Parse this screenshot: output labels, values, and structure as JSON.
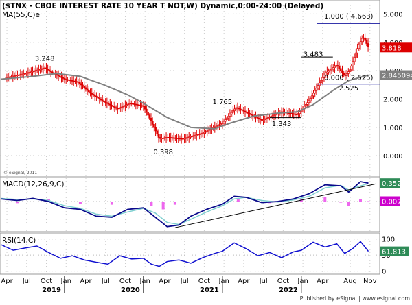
{
  "header": {
    "title": "($TNX - CBOE INTEREST RATE 10 YEAR T NOT,W) Dynamic,0:00-24:00 (Delayed)",
    "ma_label": "MA(55,C)e"
  },
  "watermark": "© eSignal, 2011",
  "footer": "Published by eSignal | www.esignal.com",
  "chart_data": [
    {
      "type": "candlestick",
      "panel": "price",
      "ylim": [
        -0.6,
        5.3
      ],
      "yticks": [
        "0.000",
        "1.000",
        "2.000",
        "3.000",
        "4.000",
        "5.000"
      ],
      "ytick_values": [
        0,
        1,
        2,
        3,
        4,
        5
      ],
      "x_range": [
        2018.2,
        2022.95
      ],
      "x": [
        2018.25,
        2018.5,
        2018.75,
        2018.83,
        2019.0,
        2019.17,
        2019.33,
        2019.5,
        2019.67,
        2019.83,
        2020.0,
        2020.1,
        2020.2,
        2020.3,
        2020.5,
        2020.75,
        2021.0,
        2021.17,
        2021.25,
        2021.5,
        2021.75,
        2021.95,
        2022.1,
        2022.3,
        2022.45,
        2022.55,
        2022.62,
        2022.72,
        2022.78,
        2022.82,
        2022.85
      ],
      "close": [
        2.75,
        2.9,
        3.1,
        2.95,
        2.7,
        2.6,
        2.2,
        1.9,
        1.65,
        1.85,
        1.75,
        1.2,
        0.6,
        0.65,
        0.6,
        0.8,
        1.15,
        1.7,
        1.6,
        1.25,
        1.55,
        1.45,
        1.95,
        2.9,
        3.2,
        2.8,
        3.05,
        3.85,
        4.2,
        4.0,
        3.818
      ],
      "series": [
        {
          "name": "MA(55,C)e",
          "x": [
            2018.2,
            2018.6,
            2018.9,
            2019.2,
            2019.5,
            2019.8,
            2020.0,
            2020.3,
            2020.6,
            2020.9,
            2021.1,
            2021.4,
            2021.7,
            2021.95,
            2022.15,
            2022.4,
            2022.6,
            2022.85
          ],
          "y": [
            2.7,
            2.8,
            2.9,
            2.8,
            2.5,
            2.15,
            1.85,
            1.35,
            1.0,
            0.95,
            1.15,
            1.4,
            1.5,
            1.55,
            1.8,
            2.3,
            2.65,
            2.845094
          ]
        }
      ],
      "annotations": [
        {
          "text": "3.248",
          "x": 2018.75,
          "y": 3.35
        },
        {
          "text": "0.398",
          "x": 2020.25,
          "y": 0.05
        },
        {
          "text": "1.765",
          "x": 2021.0,
          "y": 1.82
        },
        {
          "text": "1.343",
          "x": 2021.75,
          "y": 1.05
        },
        {
          "text": "3.483",
          "x": 2022.15,
          "y": 3.5
        },
        {
          "text": "2.525",
          "x": 2022.6,
          "y": 2.3
        },
        {
          "text": "1.000 ( 4.663)",
          "x": 2022.6,
          "y": 4.84
        },
        {
          "text": "0.000 ( 2.525)",
          "x": 2022.6,
          "y": 2.68
        }
      ],
      "levels": [
        {
          "label": "1.000 ( 4.663)",
          "value": 4.663,
          "x_start": 2022.2
        },
        {
          "label": "0.000 ( 2.525)",
          "value": 2.525,
          "x_start": 2022.2
        }
      ],
      "support_lines": [
        {
          "name": "3.483-level",
          "x_start": 2022.0,
          "x_end": 2022.4,
          "y": 3.483
        },
        {
          "name": "1.343-level",
          "x_start": 2021.6,
          "x_end": 2022.0,
          "y": 1.343
        }
      ],
      "last_values": [
        {
          "name": "close",
          "value": "3.818",
          "color": "#dd0000"
        },
        {
          "name": "MA(55,C)e",
          "value": "2.845094",
          "color": "#808080"
        }
      ],
      "colors": {
        "candle": "#dd0000",
        "ma": "#808080",
        "level": "#1a1aa0",
        "grid": "#bbbbbb"
      }
    },
    {
      "type": "line",
      "panel": "macd",
      "title": "MACD(12,26,9,C)",
      "ylim": [
        -0.55,
        0.42
      ],
      "x": [
        2018.2,
        2018.4,
        2018.6,
        2018.8,
        2019.0,
        2019.2,
        2019.4,
        2019.6,
        2019.8,
        2020.0,
        2020.15,
        2020.3,
        2020.45,
        2020.6,
        2020.8,
        2021.0,
        2021.15,
        2021.3,
        2021.5,
        2021.7,
        2021.9,
        2022.1,
        2022.3,
        2022.5,
        2022.6,
        2022.75,
        2022.85
      ],
      "series": [
        {
          "name": "MACD",
          "values": [
            0.05,
            0.02,
            0.06,
            0.0,
            -0.12,
            -0.15,
            -0.28,
            -0.3,
            -0.15,
            -0.12,
            -0.3,
            -0.48,
            -0.45,
            -0.28,
            -0.15,
            -0.05,
            0.1,
            0.08,
            -0.02,
            0.0,
            0.05,
            0.15,
            0.32,
            0.3,
            0.18,
            0.38,
            0.352
          ]
        },
        {
          "name": "Signal",
          "values": [
            0.06,
            0.04,
            0.05,
            0.02,
            -0.08,
            -0.13,
            -0.24,
            -0.28,
            -0.2,
            -0.13,
            -0.22,
            -0.4,
            -0.44,
            -0.34,
            -0.2,
            -0.08,
            0.05,
            0.08,
            0.02,
            -0.01,
            0.03,
            0.1,
            0.26,
            0.31,
            0.22,
            0.3,
            0.345
          ]
        }
      ],
      "histogram": {
        "x": [
          2018.4,
          2018.8,
          2019.2,
          2019.6,
          2020.1,
          2020.25,
          2020.4,
          2021.2,
          2021.6,
          2022.0,
          2022.3,
          2022.5,
          2022.6,
          2022.75,
          2022.85
        ],
        "values": [
          -0.03,
          0.04,
          -0.04,
          -0.06,
          -0.08,
          -0.15,
          -0.06,
          0.04,
          -0.03,
          0.05,
          0.08,
          -0.02,
          -0.08,
          0.05,
          0.007
        ]
      },
      "trendline": {
        "x": [
          2020.4,
          2022.95
        ],
        "y": [
          -0.5,
          0.34
        ]
      },
      "last_values": [
        {
          "name": "MACD",
          "value": "0.352",
          "color": "#2e8b57"
        },
        {
          "name": "Histogram",
          "value": "0.007",
          "color": "#cc00cc"
        }
      ],
      "colors": {
        "macd": "#0a0a8c",
        "signal": "#7fd0d0",
        "hist": "#ee66ee"
      }
    },
    {
      "type": "line",
      "panel": "rsi",
      "title": "RSI(14,C)",
      "ylim": [
        -5,
        110
      ],
      "yticks": [
        "0",
        "50",
        "100"
      ],
      "ytick_values": [
        0,
        50,
        100
      ],
      "x": [
        2018.2,
        2018.35,
        2018.5,
        2018.65,
        2018.8,
        2018.95,
        2019.1,
        2019.25,
        2019.4,
        2019.55,
        2019.7,
        2019.85,
        2020.0,
        2020.1,
        2020.2,
        2020.3,
        2020.45,
        2020.6,
        2020.75,
        2020.9,
        2021.0,
        2021.15,
        2021.3,
        2021.45,
        2021.6,
        2021.75,
        2021.9,
        2022.0,
        2022.15,
        2022.3,
        2022.45,
        2022.55,
        2022.65,
        2022.75,
        2022.85
      ],
      "values": [
        82,
        65,
        72,
        78,
        58,
        40,
        48,
        35,
        28,
        22,
        48,
        38,
        40,
        22,
        15,
        30,
        35,
        25,
        42,
        55,
        62,
        88,
        70,
        48,
        58,
        42,
        60,
        65,
        90,
        75,
        85,
        55,
        70,
        92,
        61.813
      ],
      "last_values": [
        {
          "name": "RSI",
          "value": "61.813",
          "color": "#2e8b57"
        }
      ],
      "colors": {
        "rsi": "#1010d0"
      }
    }
  ],
  "xaxis": {
    "range": [
      2018.2,
      2022.95
    ],
    "months": [
      {
        "label": "Apr",
        "x": 2018.27
      },
      {
        "label": "Jul",
        "x": 2018.52
      },
      {
        "label": "Oct",
        "x": 2018.77
      },
      {
        "label": "Jan",
        "x": 2019.02
      },
      {
        "label": "Apr",
        "x": 2019.27
      },
      {
        "label": "Jul",
        "x": 2019.52
      },
      {
        "label": "Oct",
        "x": 2019.77
      },
      {
        "label": "Jan",
        "x": 2020.02
      },
      {
        "label": "Apr",
        "x": 2020.27
      },
      {
        "label": "Jul",
        "x": 2020.52
      },
      {
        "label": "Oct",
        "x": 2020.77
      },
      {
        "label": "Jan",
        "x": 2021.02
      },
      {
        "label": "Apr",
        "x": 2021.27
      },
      {
        "label": "Jul",
        "x": 2021.52
      },
      {
        "label": "Oct",
        "x": 2021.77
      },
      {
        "label": "Jan",
        "x": 2022.02
      },
      {
        "label": "Apr",
        "x": 2022.27
      },
      {
        "label": "Aug",
        "x": 2022.62
      },
      {
        "label": "Nov",
        "x": 2022.87
      }
    ],
    "years": [
      {
        "label": "2019",
        "x": 2019.0
      },
      {
        "label": "2020",
        "x": 2020.0
      },
      {
        "label": "2021",
        "x": 2021.0
      },
      {
        "label": "2022",
        "x": 2022.0
      }
    ]
  }
}
